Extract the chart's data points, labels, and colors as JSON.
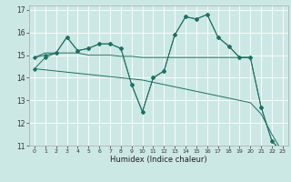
{
  "title": "",
  "xlabel": "Humidex (Indice chaleur)",
  "xlim": [
    -0.5,
    23.5
  ],
  "ylim": [
    11,
    17.2
  ],
  "yticks": [
    11,
    12,
    13,
    14,
    15,
    16,
    17
  ],
  "xticks": [
    0,
    1,
    2,
    3,
    4,
    5,
    6,
    7,
    8,
    9,
    10,
    11,
    12,
    13,
    14,
    15,
    16,
    17,
    18,
    19,
    20,
    21,
    22,
    23
  ],
  "bg_color": "#cce8e4",
  "line_color": "#1e7060",
  "grid_color": "#ffffff",
  "series": [
    {
      "x": [
        0,
        1,
        2,
        3,
        4,
        5,
        6,
        7,
        8,
        9,
        10,
        11,
        12,
        13,
        14,
        15,
        16,
        17,
        18,
        19,
        20,
        21,
        22,
        23
      ],
      "y": [
        14.4,
        14.9,
        15.1,
        15.8,
        15.2,
        15.3,
        15.5,
        15.5,
        15.3,
        13.7,
        12.5,
        14.0,
        14.3,
        15.9,
        16.7,
        16.6,
        16.8,
        15.8,
        15.4,
        14.9,
        14.9,
        12.7,
        11.2,
        10.7
      ],
      "markers": true
    },
    {
      "x": [
        0,
        1,
        2,
        3,
        4,
        5,
        6,
        7,
        8,
        9,
        10,
        11,
        12,
        13,
        14,
        15,
        16,
        17,
        18,
        19,
        20
      ],
      "y": [
        14.9,
        15.1,
        15.1,
        15.1,
        15.1,
        15.0,
        15.0,
        15.0,
        14.95,
        14.95,
        14.9,
        14.9,
        14.9,
        14.9,
        14.9,
        14.9,
        14.9,
        14.9,
        14.9,
        14.9,
        14.9
      ],
      "markers": false
    },
    {
      "x": [
        0,
        1,
        2,
        3,
        4,
        5,
        6,
        7,
        8,
        9,
        10,
        11,
        12,
        13,
        14,
        15,
        16,
        17,
        18,
        19,
        20,
        21,
        22,
        23
      ],
      "y": [
        14.4,
        14.35,
        14.3,
        14.25,
        14.2,
        14.15,
        14.1,
        14.05,
        14.0,
        13.95,
        13.9,
        13.8,
        13.7,
        13.6,
        13.5,
        13.4,
        13.3,
        13.2,
        13.1,
        13.0,
        12.9,
        12.4,
        11.5,
        10.7
      ],
      "markers": false
    },
    {
      "x": [
        0,
        1,
        2,
        3,
        4,
        5,
        6,
        7,
        8,
        9,
        10,
        11,
        12,
        13,
        14,
        15,
        16,
        17,
        18,
        19,
        20,
        21,
        22,
        23
      ],
      "y": [
        14.9,
        15.0,
        15.1,
        15.8,
        15.2,
        15.3,
        15.5,
        15.5,
        15.3,
        13.7,
        12.5,
        14.0,
        14.3,
        15.9,
        16.7,
        16.6,
        16.8,
        15.8,
        15.4,
        14.9,
        14.9,
        12.7,
        11.2,
        10.7
      ],
      "markers": true
    }
  ]
}
